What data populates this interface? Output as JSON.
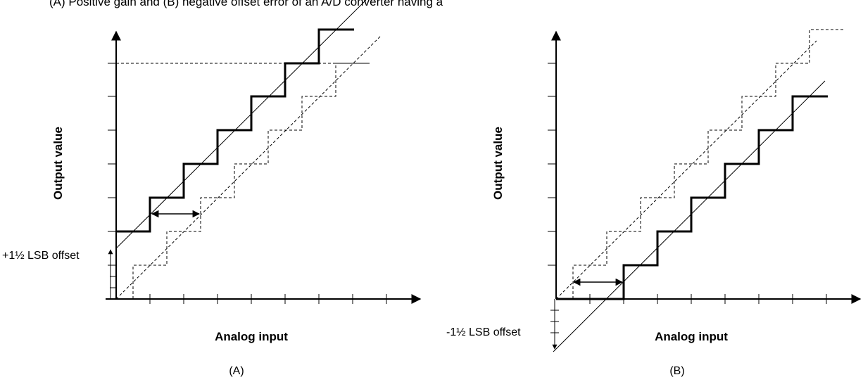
{
  "caption": "(A) Positive gain and (B) negative offset error of an A/D converter having a",
  "panels": [
    {
      "id": "A",
      "label": "(A)",
      "y_axis_label": "Output value",
      "x_axis_label": "Analog input",
      "offset_label": "+1½ LSB offset",
      "offset_lsb": 1.5
    },
    {
      "id": "B",
      "label": "(B)",
      "y_axis_label": "Output value",
      "x_axis_label": "Analog input",
      "offset_label": "-1½ LSB offset",
      "offset_lsb": -1.5
    }
  ]
}
